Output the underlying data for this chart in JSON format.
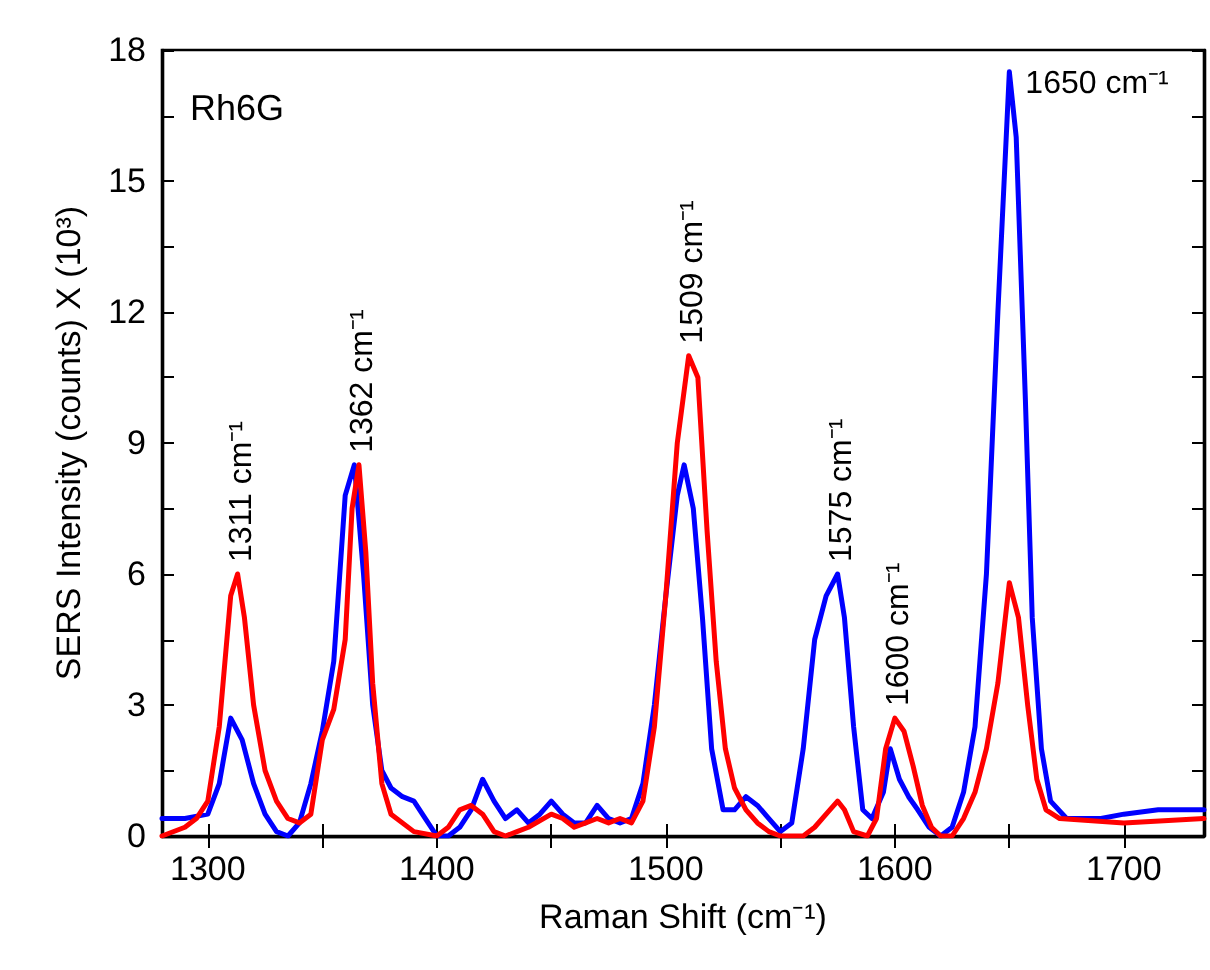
{
  "chart_data": {
    "type": "line",
    "xlabel": "Raman Shift (cm⁻¹)",
    "ylabel": "SERS Intensity (counts) X (10³)",
    "annotations": [
      "Rh6G",
      {
        "text": "1311 cm⁻¹",
        "x": 1313,
        "y": 6
      },
      {
        "text": "1362 cm⁻¹",
        "x": 1366,
        "y": 8.5
      },
      {
        "text": "1509 cm⁻¹",
        "x": 1510,
        "y": 11
      },
      {
        "text": "1575 cm⁻¹",
        "x": 1575,
        "y": 6
      },
      {
        "text": "1600 cm⁻¹",
        "x": 1600,
        "y": 2.7
      },
      {
        "text": "1650 cm⁻¹",
        "x": 1650,
        "y": 17.5
      }
    ],
    "xlim": [
      1280,
      1735
    ],
    "xticks": [
      1300,
      {
        "value": 1350,
        "label": null
      },
      1400,
      {
        "value": 1450,
        "label": null
      },
      1500,
      {
        "value": 1550,
        "label": null
      },
      1600,
      {
        "value": 1650,
        "label": null
      },
      1700
    ],
    "ylim": [
      0,
      18
    ],
    "yticks": [
      0,
      {
        "value": 1.5,
        "label": null
      },
      3,
      {
        "value": 4.5,
        "label": null
      },
      6,
      {
        "value": 7.5,
        "label": null
      },
      9,
      {
        "value": 10.5,
        "label": null
      },
      12,
      {
        "value": 13.5,
        "label": null
      },
      15,
      {
        "value": 16.5,
        "label": null
      },
      18
    ],
    "grid": false,
    "marker": "none",
    "line_style": "solid",
    "series": [
      {
        "color": "#0000ff",
        "x": [
          1280,
          1290,
          1300,
          1305,
          1310,
          1315,
          1320,
          1325,
          1330,
          1335,
          1340,
          1345,
          1350,
          1355,
          1360,
          1364,
          1368,
          1372,
          1376,
          1380,
          1385,
          1390,
          1395,
          1400,
          1405,
          1410,
          1415,
          1420,
          1425,
          1430,
          1435,
          1440,
          1445,
          1450,
          1455,
          1460,
          1465,
          1470,
          1475,
          1480,
          1485,
          1490,
          1495,
          1500,
          1505,
          1508,
          1512,
          1516,
          1520,
          1525,
          1530,
          1535,
          1540,
          1545,
          1550,
          1555,
          1560,
          1565,
          1570,
          1575,
          1578,
          1582,
          1586,
          1590,
          1595,
          1598,
          1602,
          1606,
          1610,
          1615,
          1620,
          1625,
          1630,
          1635,
          1640,
          1645,
          1650,
          1653,
          1657,
          1660,
          1664,
          1668,
          1675,
          1690,
          1700,
          1715,
          1735
        ],
        "values": [
          0.4,
          0.4,
          0.5,
          1.2,
          2.7,
          2.2,
          1.2,
          0.5,
          0.1,
          0,
          0.3,
          1.2,
          2.4,
          4,
          7.8,
          8.5,
          6,
          3,
          1.5,
          1.1,
          0.9,
          0.8,
          0.4,
          0,
          0,
          0.2,
          0.6,
          1.3,
          0.8,
          0.4,
          0.6,
          0.3,
          0.5,
          0.8,
          0.5,
          0.3,
          0.3,
          0.7,
          0.4,
          0.3,
          0.4,
          1.2,
          3,
          5.5,
          7.8,
          8.5,
          7.5,
          5,
          2,
          0.6,
          0.6,
          0.9,
          0.7,
          0.4,
          0.1,
          0.3,
          2,
          4.5,
          5.5,
          6,
          5,
          2.5,
          0.6,
          0.4,
          1,
          2,
          1.3,
          0.9,
          0.6,
          0.2,
          0,
          0.2,
          1,
          2.5,
          6,
          12,
          17.5,
          16,
          10,
          5,
          2,
          0.8,
          0.4,
          0.4,
          0.5,
          0.6,
          0.6
        ]
      },
      {
        "color": "#ff0000",
        "x": [
          1280,
          1290,
          1295,
          1300,
          1305,
          1310,
          1313,
          1316,
          1320,
          1325,
          1330,
          1335,
          1340,
          1345,
          1350,
          1355,
          1360,
          1363,
          1366,
          1369,
          1372,
          1376,
          1380,
          1390,
          1400,
          1405,
          1410,
          1415,
          1420,
          1425,
          1430,
          1435,
          1440,
          1450,
          1455,
          1460,
          1465,
          1470,
          1475,
          1480,
          1485,
          1490,
          1495,
          1500,
          1505,
          1510,
          1514,
          1518,
          1522,
          1526,
          1530,
          1535,
          1540,
          1545,
          1550,
          1560,
          1565,
          1570,
          1575,
          1578,
          1582,
          1588,
          1592,
          1596,
          1600,
          1604,
          1608,
          1612,
          1616,
          1620,
          1625,
          1630,
          1635,
          1640,
          1645,
          1650,
          1654,
          1658,
          1662,
          1666,
          1672,
          1700,
          1735
        ],
        "values": [
          0,
          0.2,
          0.4,
          0.8,
          2.5,
          5.5,
          6,
          5,
          3,
          1.5,
          0.8,
          0.4,
          0.3,
          0.5,
          2.2,
          2.9,
          4.5,
          7.5,
          8.5,
          6.5,
          3.5,
          1.2,
          0.5,
          0.1,
          0,
          0.2,
          0.6,
          0.7,
          0.5,
          0.1,
          0,
          0.1,
          0.2,
          0.5,
          0.4,
          0.2,
          0.3,
          0.4,
          0.3,
          0.4,
          0.3,
          0.8,
          2.5,
          5.5,
          9,
          11,
          10.5,
          7,
          4,
          2,
          1.1,
          0.6,
          0.3,
          0.1,
          0,
          0,
          0.2,
          0.5,
          0.8,
          0.6,
          0.1,
          0,
          0.4,
          2,
          2.7,
          2.4,
          1.6,
          0.7,
          0.2,
          0,
          0,
          0.4,
          1,
          2,
          3.5,
          5.8,
          5,
          3,
          1.3,
          0.6,
          0.4,
          0.3,
          0.4
        ]
      }
    ]
  }
}
